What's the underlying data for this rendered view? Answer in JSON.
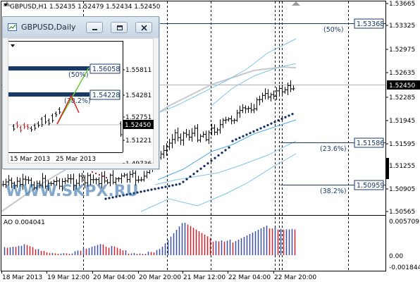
{
  "main_chart": {
    "header": "GBPUSD,H1  1.52435 1.52479 1.52434 1.52450",
    "price_labels": [
      "1.53665",
      "1.53325",
      "1.52975",
      "1.52635",
      "1.52285",
      "1.51945",
      "1.51595",
      "1.51255",
      "1.50905",
      "1.50565"
    ],
    "current_price": "1.52450",
    "level_labels": [
      "1.53368",
      "1.51586",
      "1.50959"
    ],
    "fib_labels": [
      "(50%)",
      "(23.6%)",
      "(38.2%)"
    ],
    "watermark": "WWW.SKPX.RU",
    "time_labels": [
      "18 Mar 2013",
      "19 Mar 12:00",
      "20 Mar 04:00",
      "20 Mar 20:00",
      "21 Mar 12:00",
      "22 Mar 04:00",
      "22 Mar 20:00"
    ]
  },
  "indicator": {
    "label": "AO 0.004041",
    "scale_labels": [
      "0.005709",
      "0.00",
      "-0.001844"
    ]
  },
  "subwindow": {
    "title": "GBPUSD,Daily",
    "price_labels": [
      "1.55811",
      "1.54281",
      "1.52751",
      "1.51221",
      "1.49736"
    ],
    "current_price": "1.52450",
    "level_labels": [
      "1.56058",
      "1.54228"
    ],
    "fib_labels": [
      "(50%)",
      "(38.2%)"
    ],
    "time_labels": [
      "15 Mar 2013",
      "25 Mar 2013"
    ]
  },
  "colors": {
    "level_line": "#1a3a66",
    "band_light": "#7ec3ea",
    "band_dark": "#4fa8e0",
    "dots": "#102a5c",
    "ao_up": "#3b4fa0",
    "ao_down": "#d0202a",
    "sub_green": "#66cc33",
    "sub_red": "#dd2222"
  },
  "icons": [
    "chart-window-icon",
    "minimize-icon",
    "restore-icon",
    "close-icon"
  ]
}
